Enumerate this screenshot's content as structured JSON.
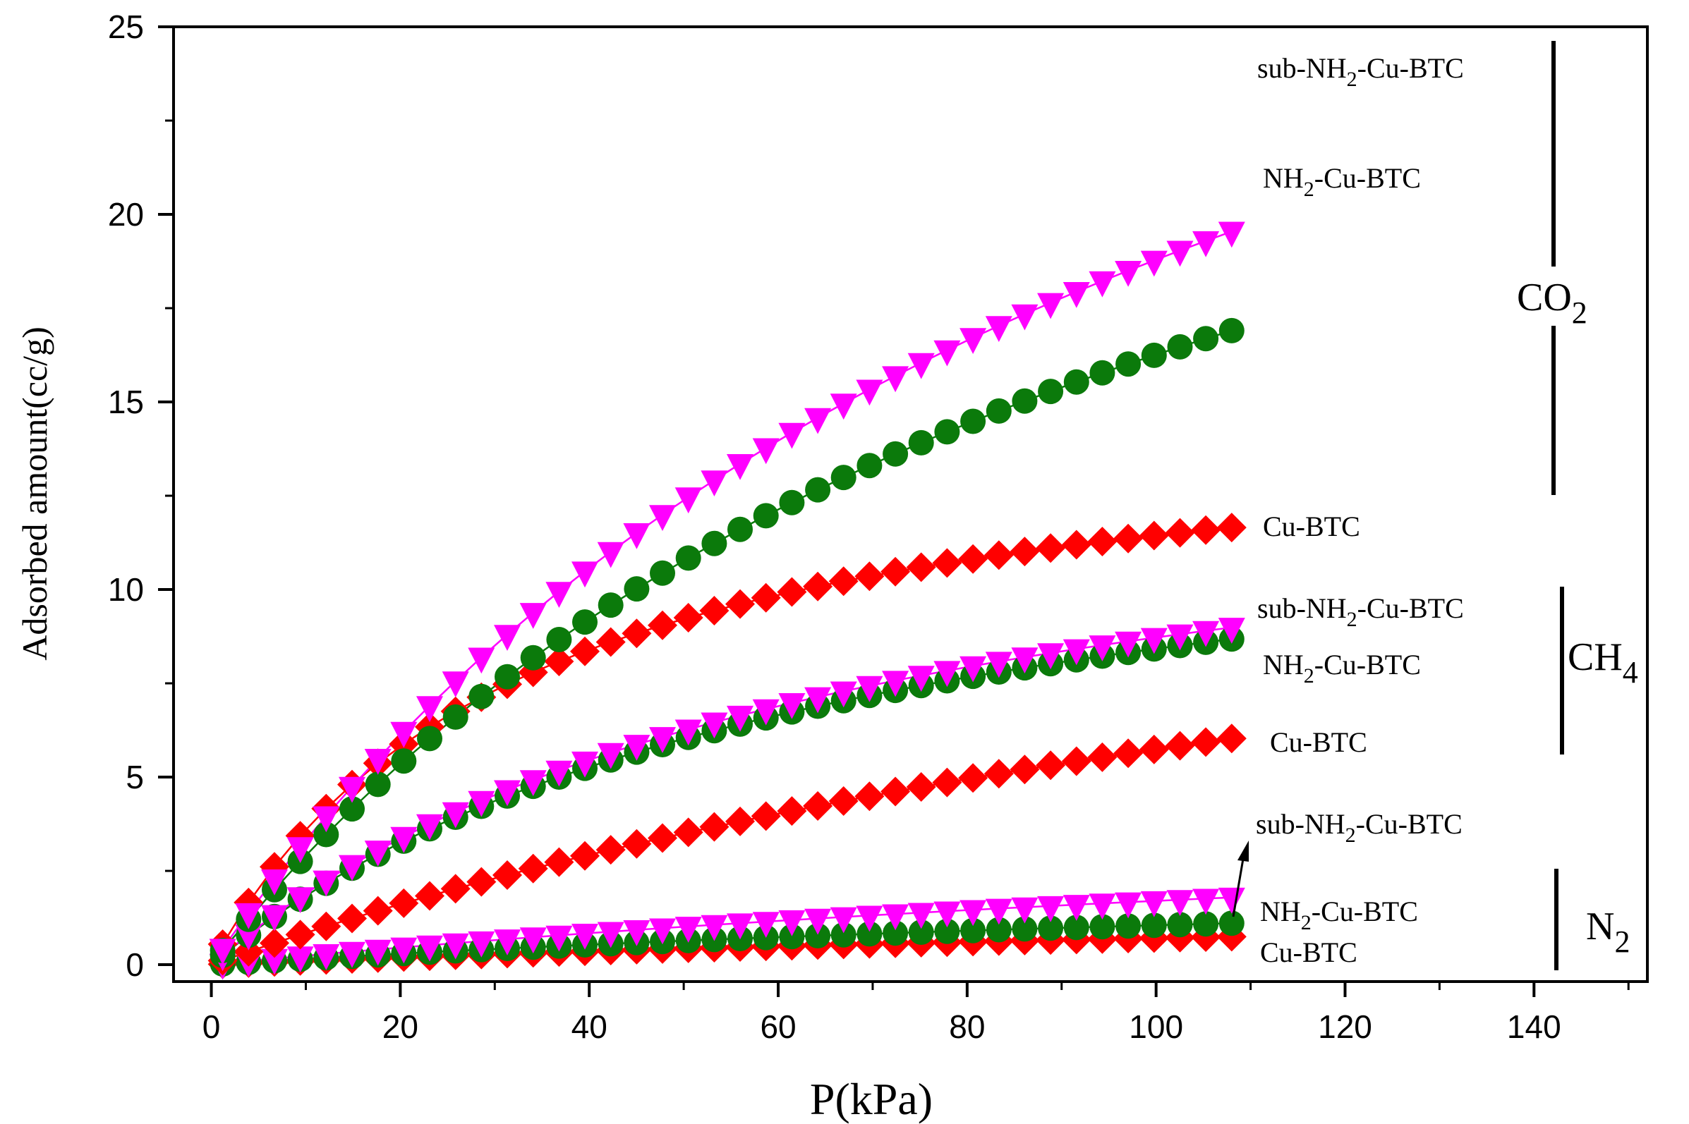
{
  "chart_data": {
    "type": "scatter",
    "title": "",
    "xlabel": "P(kPa)",
    "ylabel": "Adsorbed amount(cc/g)",
    "xlim": [
      -4,
      152
    ],
    "ylim": [
      -0.45,
      25
    ],
    "xticks": [
      0,
      20,
      40,
      60,
      80,
      100,
      120,
      140
    ],
    "yticks": [
      0,
      5,
      10,
      15,
      20,
      25
    ],
    "grid": false,
    "colors": {
      "sub-NH2-Cu-BTC": "#ff00ff",
      "NH2-Cu-BTC": "#0b7a0b",
      "Cu-BTC": "#ff0000"
    },
    "gas_labels": {
      "co2": {
        "main": "CO",
        "sub": "2"
      },
      "ch4": {
        "main": "CH",
        "sub": "4"
      },
      "n2": {
        "main": "N",
        "sub": "2"
      }
    },
    "series": [
      {
        "gas": "CO2",
        "name": "sub-NH2-Cu-BTC",
        "marker": "triangle-down",
        "label": {
          "pre": "sub-NH",
          "sub": "2",
          "post": "-Cu-BTC"
        },
        "qmax": 39.0,
        "b": 0.0093,
        "x_start": 1.2,
        "x_end": 108,
        "n": 40
      },
      {
        "gas": "CO2",
        "name": "NH2-Cu-BTC",
        "marker": "circle",
        "label": {
          "pre": "NH",
          "sub": "2",
          "post": "-Cu-BTC"
        },
        "qmax": 33.2,
        "b": 0.0096,
        "x_start": 1.2,
        "x_end": 108,
        "n": 40
      },
      {
        "gas": "CO2",
        "name": "Cu-BTC",
        "marker": "diamond",
        "label": {
          "pre": "Cu-BTC",
          "sub": "",
          "post": ""
        },
        "qmax": 15.1,
        "b": 0.0313,
        "x_start": 1.2,
        "x_end": 108,
        "n": 40
      },
      {
        "gas": "CH4",
        "name": "sub-NH2-Cu-BTC",
        "marker": "triangle-down",
        "label": {
          "pre": "sub-NH",
          "sub": "2",
          "post": "-Cu-BTC"
        },
        "qmax": 14.5,
        "b": 0.0151,
        "x_start": 1.2,
        "x_end": 108,
        "n": 40
      },
      {
        "gas": "CH4",
        "name": "NH2-Cu-BTC",
        "marker": "circle",
        "label": {
          "pre": "NH",
          "sub": "2",
          "post": "-Cu-BTC"
        },
        "qmax": 14.0,
        "b": 0.0151,
        "x_start": 1.2,
        "x_end": 108,
        "n": 40
      },
      {
        "gas": "CH4",
        "name": "Cu-BTC",
        "marker": "diamond",
        "label": {
          "pre": "Cu-BTC",
          "sub": "",
          "post": ""
        },
        "qmax": 16.0,
        "b": 0.0056,
        "x_start": 1.2,
        "x_end": 108,
        "n": 40
      },
      {
        "gas": "N2",
        "name": "sub-NH2-Cu-BTC",
        "marker": "triangle-down",
        "label": {
          "pre": "sub-NH",
          "sub": "2",
          "post": "-Cu-BTC"
        },
        "qmax": 5.4,
        "b": 0.0046,
        "x_start": 1.2,
        "x_end": 108,
        "n": 40
      },
      {
        "gas": "N2",
        "name": "NH2-Cu-BTC",
        "marker": "circle",
        "label": {
          "pre": "NH",
          "sub": "2",
          "post": "-Cu-BTC"
        },
        "qmax": 3.0,
        "b": 0.0054,
        "x_start": 1.2,
        "x_end": 108,
        "n": 40
      },
      {
        "gas": "N2",
        "name": "Cu-BTC",
        "marker": "diamond",
        "label": {
          "pre": "Cu-BTC",
          "sub": "",
          "post": ""
        },
        "qmax": 2.0,
        "b": 0.0055,
        "x_start": 1.2,
        "x_end": 108,
        "n": 40
      }
    ]
  }
}
